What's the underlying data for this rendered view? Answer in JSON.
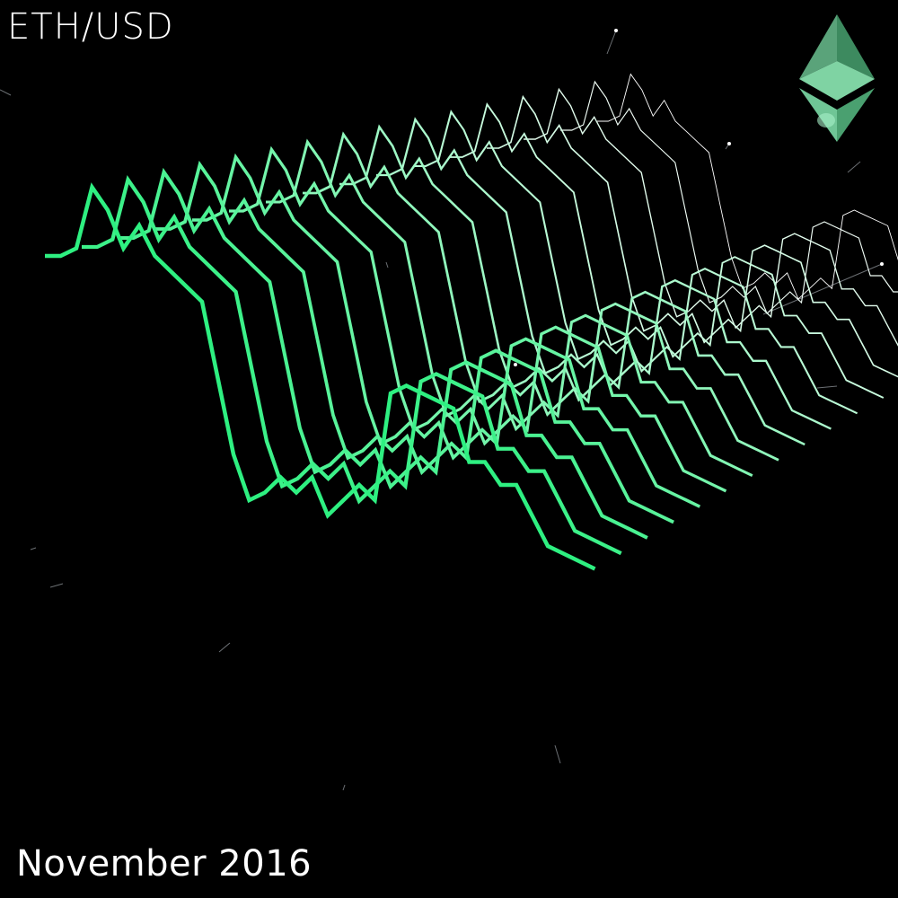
{
  "header": {
    "pair": "ETH/USD"
  },
  "footer": {
    "period": "November 2016"
  },
  "logo": {
    "icon": "ethereum-diamond-icon",
    "colors": [
      "#5aa37a",
      "#7fd3a3",
      "#3d8a5f",
      "#a6f0c8"
    ]
  },
  "colors": {
    "background": "#000000",
    "line_front": "#2ef081",
    "line_back": "#ffffff"
  },
  "chart_data": {
    "type": "line",
    "style": "3d-waterfall",
    "series": [
      {
        "values": [
          10.6,
          10.6,
          10.7,
          11.5,
          11.2,
          10.7,
          11.0,
          10.6,
          10.4,
          10.2,
          10.0,
          9.0,
          8.0,
          7.4,
          7.5,
          7.7,
          7.5,
          7.7,
          7.2,
          7.4,
          7.6,
          7.4,
          8.8,
          8.9,
          8.8,
          8.7,
          8.6,
          7.9,
          7.9,
          7.6,
          7.6,
          7.2,
          6.8,
          6.7,
          6.6,
          6.5
        ]
      }
    ],
    "layers": 16,
    "grid": false,
    "legend": "none"
  }
}
